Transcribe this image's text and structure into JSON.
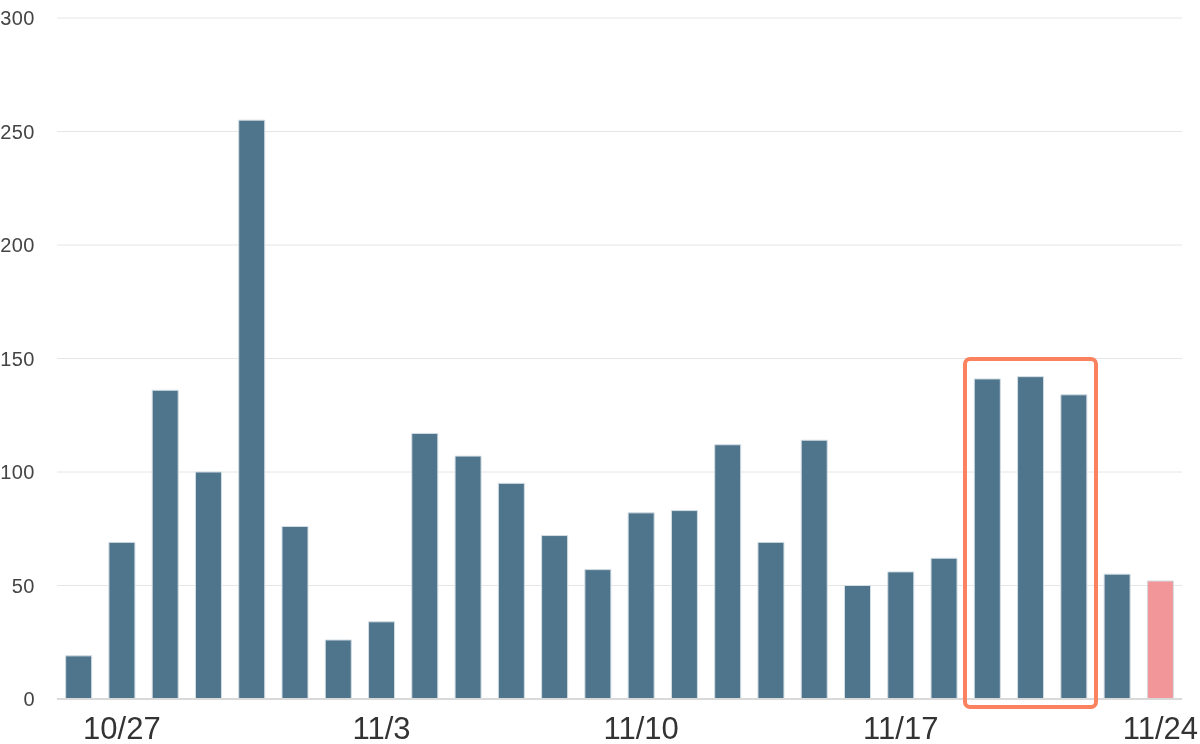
{
  "chart_data": {
    "type": "bar",
    "categories": [
      null,
      "10/27",
      null,
      null,
      null,
      null,
      null,
      "11/3",
      null,
      null,
      null,
      null,
      null,
      "11/10",
      null,
      null,
      null,
      null,
      null,
      "11/17",
      null,
      null,
      null,
      null,
      null,
      "11/24"
    ],
    "values": [
      19,
      69,
      136,
      100,
      255,
      76,
      26,
      34,
      117,
      107,
      95,
      72,
      57,
      82,
      83,
      112,
      69,
      114,
      50,
      56,
      62,
      141,
      142,
      134,
      55,
      52
    ],
    "colors": [
      "#4f758c",
      "#4f758c",
      "#4f758c",
      "#4f758c",
      "#4f758c",
      "#4f758c",
      "#4f758c",
      "#4f758c",
      "#4f758c",
      "#4f758c",
      "#4f758c",
      "#4f758c",
      "#4f758c",
      "#4f758c",
      "#4f758c",
      "#4f758c",
      "#4f758c",
      "#4f758c",
      "#4f758c",
      "#4f758c",
      "#4f758c",
      "#4f758c",
      "#4f758c",
      "#4f758c",
      "#4f758c",
      "#f2969a"
    ],
    "ylim": [
      0,
      300
    ],
    "yticks": [
      0,
      50,
      100,
      150,
      200,
      250,
      300
    ],
    "grid": "y"
  }
}
